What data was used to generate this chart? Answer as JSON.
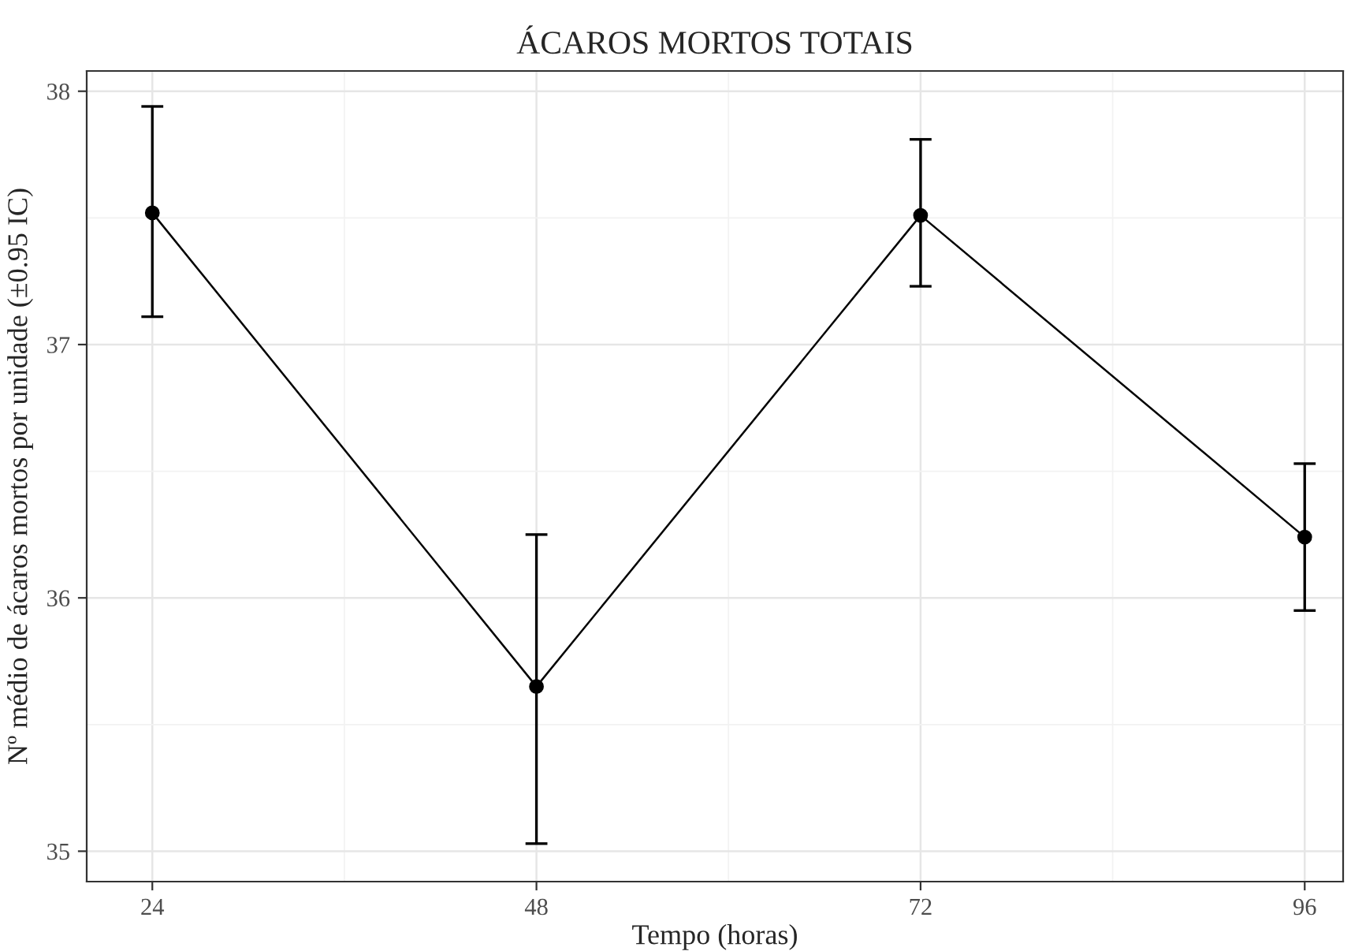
{
  "chart_data": {
    "type": "line",
    "title": "ÁCAROS MORTOS TOTAIS",
    "xlabel": "Tempo (horas)",
    "ylabel": "Nº médio de ácaros mortos por unidade (±0.95 IC)",
    "x": [
      24,
      48,
      72,
      96
    ],
    "series": [
      {
        "color": "#000000",
        "values": [
          37.52,
          35.65,
          37.51,
          36.24
        ],
        "errors": [
          [
            37.11,
            37.94
          ],
          [
            35.03,
            36.25
          ],
          [
            37.23,
            37.81
          ],
          [
            35.95,
            36.53
          ]
        ]
      }
    ],
    "xlim": [
      19.9,
      98.4
    ],
    "xticks": [
      24,
      48,
      72,
      96
    ],
    "ylim": [
      34.88,
      38.08
    ],
    "yticks": [
      35,
      36,
      37,
      38
    ],
    "grid": true,
    "marker": "circle",
    "line_style": "solid"
  }
}
